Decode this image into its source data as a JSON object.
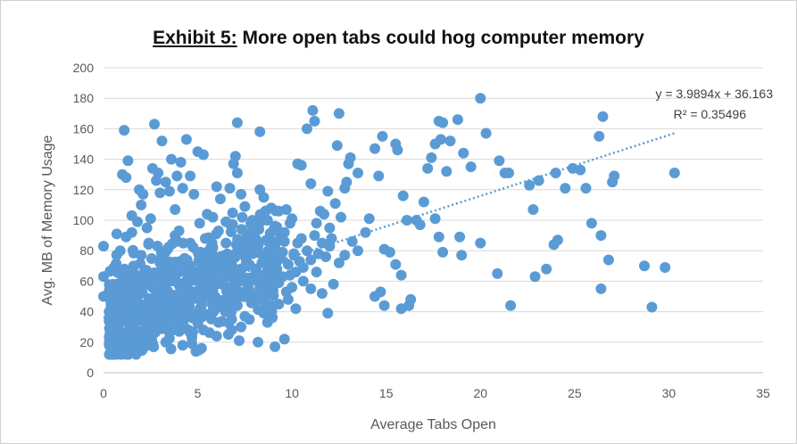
{
  "chart_data": {
    "type": "scatter",
    "title_prefix": "Exhibit 5:",
    "title_rest": " More open tabs could hog computer memory",
    "xlabel": "Average Tabs Open",
    "ylabel": "Avg. MB of Memory Usage",
    "xlim": [
      0,
      35
    ],
    "ylim": [
      0,
      200
    ],
    "x_ticks": [
      "0",
      "5",
      "10",
      "15",
      "20",
      "25",
      "30",
      "35"
    ],
    "y_ticks": [
      "0",
      "20",
      "40",
      "60",
      "80",
      "100",
      "120",
      "140",
      "160",
      "180",
      "200"
    ],
    "grid": "horizontal",
    "point_color": "#5B9BD5",
    "trendline": {
      "slope": 3.9894,
      "intercept": 36.163,
      "x_range": [
        0,
        30.3
      ],
      "equation": "y = 3.9894x + 36.163",
      "r_squared": "R² = 0.35496",
      "color": "#5B9BD5"
    },
    "points": [
      [
        0.0,
        83
      ],
      [
        0.0,
        63
      ],
      [
        0.0,
        50
      ],
      [
        0.5,
        58
      ],
      [
        0.4,
        24
      ],
      [
        0.7,
        91
      ],
      [
        0.8,
        67
      ],
      [
        1.0,
        130
      ],
      [
        1.1,
        159
      ],
      [
        1.2,
        128
      ],
      [
        1.3,
        139
      ],
      [
        1.2,
        89
      ],
      [
        1.5,
        92
      ],
      [
        1.5,
        103
      ],
      [
        1.8,
        99
      ],
      [
        1.9,
        120
      ],
      [
        2.0,
        110
      ],
      [
        2.1,
        117
      ],
      [
        2.3,
        95
      ],
      [
        2.5,
        101
      ],
      [
        2.6,
        134
      ],
      [
        2.7,
        163
      ],
      [
        2.8,
        126
      ],
      [
        2.9,
        131
      ],
      [
        3.0,
        118
      ],
      [
        3.1,
        152
      ],
      [
        3.3,
        125
      ],
      [
        3.5,
        119
      ],
      [
        3.6,
        140
      ],
      [
        3.8,
        107
      ],
      [
        3.9,
        129
      ],
      [
        4.1,
        138
      ],
      [
        4.2,
        121
      ],
      [
        4.4,
        153
      ],
      [
        4.6,
        129
      ],
      [
        4.8,
        117
      ],
      [
        5.0,
        145
      ],
      [
        5.1,
        98
      ],
      [
        5.3,
        143
      ],
      [
        5.5,
        104
      ],
      [
        5.8,
        102
      ],
      [
        6.0,
        122
      ],
      [
        6.1,
        93
      ],
      [
        6.2,
        114
      ],
      [
        6.5,
        99
      ],
      [
        6.7,
        121
      ],
      [
        6.9,
        137
      ],
      [
        7.0,
        142
      ],
      [
        7.1,
        131
      ],
      [
        7.1,
        164
      ],
      [
        7.3,
        117
      ],
      [
        7.5,
        109
      ],
      [
        7.7,
        90
      ],
      [
        7.9,
        100
      ],
      [
        8.1,
        93
      ],
      [
        8.3,
        158
      ],
      [
        8.3,
        120
      ],
      [
        8.5,
        115
      ],
      [
        8.7,
        100
      ],
      [
        8.9,
        108
      ],
      [
        9.1,
        96
      ],
      [
        9.3,
        106
      ],
      [
        9.4,
        88
      ],
      [
        9.5,
        79
      ],
      [
        9.6,
        92
      ],
      [
        9.7,
        107
      ],
      [
        9.9,
        98
      ],
      [
        10.0,
        101
      ],
      [
        10.1,
        77
      ],
      [
        10.3,
        137
      ],
      [
        10.5,
        136
      ],
      [
        10.5,
        88
      ],
      [
        10.8,
        160
      ],
      [
        11.0,
        124
      ],
      [
        11.1,
        172
      ],
      [
        11.2,
        165
      ],
      [
        11.3,
        98
      ],
      [
        11.5,
        106
      ],
      [
        11.7,
        104
      ],
      [
        11.9,
        119
      ],
      [
        12.0,
        95
      ],
      [
        12.1,
        88
      ],
      [
        12.3,
        111
      ],
      [
        12.4,
        149
      ],
      [
        12.5,
        170
      ],
      [
        12.6,
        102
      ],
      [
        12.8,
        121
      ],
      [
        12.9,
        125
      ],
      [
        13.0,
        137
      ],
      [
        13.1,
        141
      ],
      [
        13.2,
        86
      ],
      [
        13.5,
        131
      ],
      [
        13.9,
        92
      ],
      [
        14.1,
        101
      ],
      [
        14.4,
        147
      ],
      [
        14.6,
        129
      ],
      [
        14.8,
        155
      ],
      [
        14.9,
        81
      ],
      [
        15.2,
        79
      ],
      [
        15.5,
        150
      ],
      [
        15.6,
        146
      ],
      [
        15.8,
        64
      ],
      [
        15.9,
        116
      ],
      [
        16.1,
        100
      ],
      [
        16.6,
        100
      ],
      [
        16.8,
        97
      ],
      [
        17.0,
        112
      ],
      [
        17.2,
        134
      ],
      [
        17.4,
        141
      ],
      [
        17.6,
        150
      ],
      [
        17.8,
        165
      ],
      [
        17.9,
        153
      ],
      [
        18.0,
        164
      ],
      [
        18.2,
        132
      ],
      [
        18.4,
        152
      ],
      [
        18.8,
        166
      ],
      [
        19.1,
        144
      ],
      [
        19.5,
        135
      ],
      [
        20.0,
        180
      ],
      [
        20.3,
        157
      ],
      [
        21.0,
        139
      ],
      [
        21.3,
        131
      ],
      [
        21.5,
        131
      ],
      [
        22.6,
        123
      ],
      [
        22.8,
        107
      ],
      [
        23.1,
        126
      ],
      [
        24.0,
        131
      ],
      [
        24.5,
        121
      ],
      [
        24.9,
        134
      ],
      [
        25.3,
        133
      ],
      [
        25.6,
        121
      ],
      [
        25.9,
        98
      ],
      [
        26.3,
        155
      ],
      [
        26.5,
        168
      ],
      [
        26.8,
        74
      ],
      [
        27.0,
        125
      ],
      [
        27.1,
        129
      ],
      [
        26.4,
        90
      ],
      [
        23.9,
        84
      ],
      [
        24.1,
        87
      ],
      [
        23.5,
        68
      ],
      [
        22.9,
        63
      ],
      [
        21.6,
        44
      ],
      [
        20.9,
        65
      ],
      [
        20.0,
        85
      ],
      [
        19.0,
        77
      ],
      [
        18.0,
        79
      ],
      [
        18.9,
        89
      ],
      [
        17.8,
        89
      ],
      [
        17.6,
        101
      ],
      [
        16.3,
        48
      ],
      [
        16.2,
        44
      ],
      [
        15.5,
        71
      ],
      [
        15.8,
        42
      ],
      [
        14.9,
        44
      ],
      [
        14.4,
        50
      ],
      [
        14.7,
        53
      ],
      [
        13.5,
        80
      ],
      [
        12.8,
        77
      ],
      [
        12.5,
        72
      ],
      [
        12.2,
        58
      ],
      [
        11.9,
        39
      ],
      [
        11.6,
        52
      ],
      [
        11.3,
        66
      ],
      [
        11.0,
        55
      ],
      [
        10.6,
        60
      ],
      [
        10.2,
        42
      ],
      [
        9.8,
        48
      ],
      [
        9.6,
        22
      ],
      [
        9.3,
        45
      ],
      [
        9.1,
        17
      ],
      [
        8.7,
        33
      ],
      [
        8.5,
        39
      ],
      [
        8.2,
        20
      ],
      [
        7.9,
        46
      ],
      [
        7.5,
        60
      ],
      [
        7.3,
        30
      ],
      [
        7.2,
        21
      ],
      [
        6.8,
        35
      ],
      [
        6.6,
        48
      ],
      [
        6.3,
        68
      ],
      [
        6.0,
        24
      ],
      [
        5.8,
        44
      ],
      [
        5.5,
        62
      ],
      [
        5.2,
        16
      ],
      [
        4.9,
        14
      ],
      [
        4.5,
        28
      ],
      [
        4.3,
        50
      ],
      [
        26.4,
        55
      ],
      [
        28.7,
        70
      ],
      [
        29.1,
        43
      ],
      [
        29.8,
        69
      ],
      [
        30.3,
        131
      ],
      [
        0.3,
        40
      ],
      [
        0.5,
        20
      ],
      [
        0.6,
        31
      ],
      [
        0.7,
        14
      ],
      [
        0.8,
        47
      ],
      [
        0.9,
        27
      ],
      [
        1.0,
        55
      ],
      [
        1.1,
        38
      ],
      [
        1.2,
        12
      ],
      [
        1.3,
        62
      ],
      [
        1.4,
        44
      ],
      [
        1.5,
        22
      ],
      [
        1.6,
        70
      ],
      [
        1.7,
        33
      ],
      [
        1.8,
        51
      ],
      [
        1.9,
        16
      ],
      [
        2.0,
        77
      ],
      [
        2.1,
        42
      ],
      [
        2.2,
        26
      ],
      [
        2.3,
        58
      ],
      [
        2.4,
        85
      ],
      [
        2.5,
        36
      ],
      [
        2.6,
        18
      ],
      [
        2.7,
        64
      ],
      [
        2.8,
        48
      ],
      [
        2.9,
        29
      ],
      [
        3.0,
        72
      ],
      [
        3.1,
        55
      ],
      [
        3.2,
        39
      ],
      [
        3.3,
        20
      ],
      [
        3.4,
        81
      ],
      [
        3.5,
        63
      ],
      [
        3.6,
        45
      ],
      [
        3.7,
        28
      ],
      [
        3.8,
        90
      ],
      [
        3.9,
        66
      ],
      [
        4.0,
        50
      ],
      [
        4.1,
        34
      ],
      [
        4.2,
        18
      ],
      [
        4.3,
        75
      ],
      [
        4.4,
        58
      ],
      [
        4.5,
        41
      ],
      [
        4.6,
        85
      ],
      [
        4.7,
        67
      ],
      [
        4.8,
        52
      ],
      [
        4.9,
        36
      ],
      [
        5.0,
        79
      ],
      [
        5.1,
        60
      ],
      [
        5.2,
        44
      ],
      [
        5.3,
        28
      ],
      [
        5.4,
        88
      ],
      [
        5.5,
        71
      ],
      [
        5.6,
        55
      ],
      [
        5.7,
        39
      ],
      [
        5.8,
        82
      ],
      [
        5.9,
        64
      ],
      [
        6.0,
        48
      ],
      [
        6.1,
        33
      ],
      [
        6.2,
        76
      ],
      [
        6.3,
        58
      ],
      [
        6.4,
        42
      ],
      [
        6.5,
        85
      ],
      [
        6.6,
        70
      ],
      [
        6.7,
        52
      ],
      [
        6.8,
        28
      ],
      [
        6.9,
        62
      ],
      [
        7.0,
        78
      ],
      [
        7.1,
        44
      ],
      [
        7.2,
        66
      ],
      [
        7.3,
        50
      ],
      [
        7.4,
        84
      ],
      [
        7.5,
        37
      ],
      [
        7.6,
        70
      ],
      [
        7.7,
        55
      ],
      [
        7.8,
        62
      ],
      [
        7.9,
        78
      ],
      [
        8.0,
        47
      ],
      [
        8.1,
        68
      ],
      [
        8.2,
        83
      ],
      [
        8.3,
        56
      ],
      [
        8.4,
        72
      ],
      [
        8.5,
        64
      ],
      [
        8.6,
        50
      ],
      [
        8.7,
        79
      ],
      [
        8.8,
        61
      ],
      [
        8.9,
        73
      ],
      [
        9.0,
        54
      ],
      [
        9.1,
        82
      ],
      [
        9.2,
        68
      ],
      [
        9.3,
        59
      ],
      [
        9.4,
        75
      ],
      [
        9.5,
        63
      ],
      [
        9.6,
        86
      ],
      [
        9.7,
        53
      ],
      [
        9.8,
        71
      ],
      [
        9.9,
        64
      ],
      [
        10.0,
        56
      ],
      [
        10.1,
        78
      ],
      [
        10.2,
        66
      ],
      [
        10.3,
        85
      ],
      [
        10.4,
        73
      ],
      [
        10.6,
        69
      ],
      [
        10.8,
        80
      ],
      [
        11.0,
        74
      ],
      [
        11.2,
        90
      ],
      [
        11.4,
        78
      ],
      [
        11.6,
        85
      ],
      [
        11.8,
        76
      ],
      [
        12.0,
        83
      ]
    ]
  }
}
